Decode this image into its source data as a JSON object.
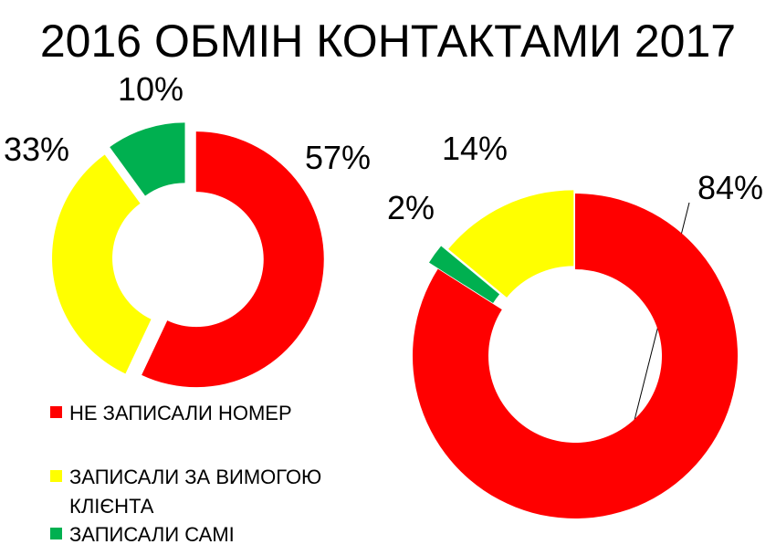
{
  "title": "2016 ОБМІН КОНТАКТАМИ 2017",
  "legend": [
    {
      "name": "НЕ ЗАПИСАЛИ НОМЕР",
      "color": "#ff0000"
    },
    {
      "name": "ЗАПИСАЛИ ЗА ВИМОГОЮ КЛІЄНТА",
      "color": "#ffff00"
    },
    {
      "name": "ЗАПИСАЛИ САМІ",
      "color": "#00b050"
    }
  ],
  "chart_data": [
    {
      "type": "donut",
      "categories": [
        "НЕ ЗАПИСАЛИ НОМЕР",
        "ЗАПИСАЛИ ЗА ВИМОГОЮ КЛІЄНТА",
        "ЗАПИСАЛИ САМІ"
      ],
      "values": [
        57,
        33,
        10
      ],
      "value_labels": [
        "57%",
        "33%",
        "10%"
      ]
    },
    {
      "type": "donut",
      "categories": [
        "НЕ ЗАПИСАЛИ НОМЕР",
        "ЗАПИСАЛИ САМІ",
        "ЗАПИСАЛИ ЗА ВИМОГОЮ КЛІЄНТА"
      ],
      "values": [
        84,
        2,
        14
      ],
      "value_labels": [
        "84%",
        "2%",
        "14%"
      ]
    }
  ]
}
